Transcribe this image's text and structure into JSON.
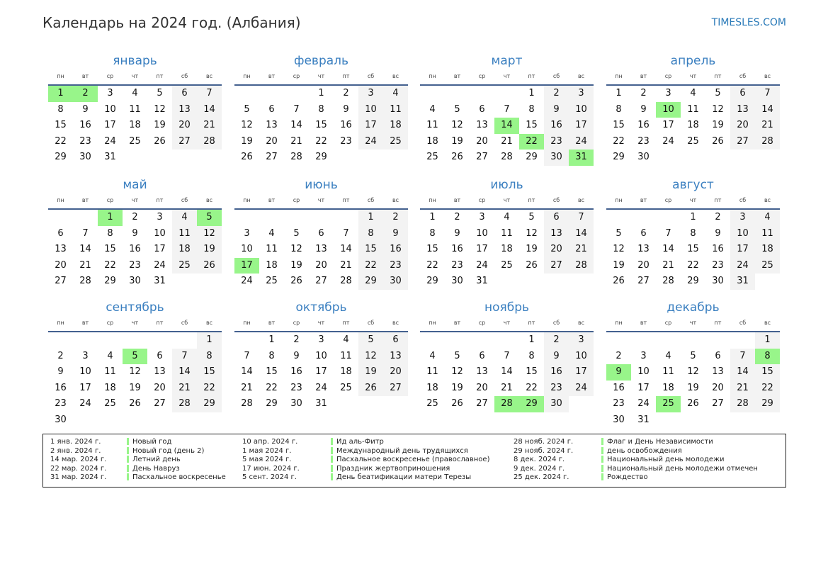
{
  "title": "Календарь на 2024 год. (Албания)",
  "site": "TIMESLES.COM",
  "year": 2024,
  "colors": {
    "holiday": "#98f58a",
    "weekend": "#f3f3f3",
    "accent": "#3a7fc0",
    "rule": "#44618f"
  },
  "weekdays": [
    "пн",
    "вт",
    "ср",
    "чт",
    "пт",
    "сб",
    "вс"
  ],
  "months": [
    {
      "name": "январь",
      "holidays": [
        1,
        2
      ]
    },
    {
      "name": "февраль",
      "holidays": []
    },
    {
      "name": "март",
      "holidays": [
        14,
        22,
        31
      ]
    },
    {
      "name": "апрель",
      "holidays": [
        10
      ]
    },
    {
      "name": "май",
      "holidays": [
        1,
        5
      ]
    },
    {
      "name": "июнь",
      "holidays": [
        17
      ]
    },
    {
      "name": "июль",
      "holidays": []
    },
    {
      "name": "август",
      "holidays": []
    },
    {
      "name": "сентябрь",
      "holidays": [
        5
      ]
    },
    {
      "name": "октябрь",
      "holidays": []
    },
    {
      "name": "ноябрь",
      "holidays": [
        28,
        29
      ]
    },
    {
      "name": "декабрь",
      "holidays": [
        8,
        9,
        25
      ]
    }
  ],
  "legend": [
    [
      {
        "date": "1 янв. 2024 г.",
        "name": "Новый год"
      },
      {
        "date": "2 янв. 2024 г.",
        "name": "Новый год (день 2)"
      },
      {
        "date": "14 мар. 2024 г.",
        "name": "Летний день"
      },
      {
        "date": "22 мар. 2024 г.",
        "name": "День Навруз"
      },
      {
        "date": "31 мар. 2024 г.",
        "name": "Пасхальное воскресенье"
      }
    ],
    [
      {
        "date": "10 апр. 2024 г.",
        "name": "Ид аль-Фитр"
      },
      {
        "date": "1 мая 2024 г.",
        "name": "Международный день трудящихся"
      },
      {
        "date": "5 мая 2024 г.",
        "name": "Пасхальное воскресенье (православное)"
      },
      {
        "date": "17 июн. 2024 г.",
        "name": "Праздник жертвоприношения"
      },
      {
        "date": "5 сент. 2024 г.",
        "name": "День беатификации матери Терезы"
      }
    ],
    [
      {
        "date": "28 нояб. 2024 г.",
        "name": "Флаг и День Независимости"
      },
      {
        "date": "29 нояб. 2024 г.",
        "name": "день освобождения"
      },
      {
        "date": "8 дек. 2024 г.",
        "name": "Национальный день молодежи"
      },
      {
        "date": "9 дек. 2024 г.",
        "name": "Национальный день молодежи отмечен"
      },
      {
        "date": "25 дек. 2024 г.",
        "name": "Рождество"
      }
    ]
  ]
}
